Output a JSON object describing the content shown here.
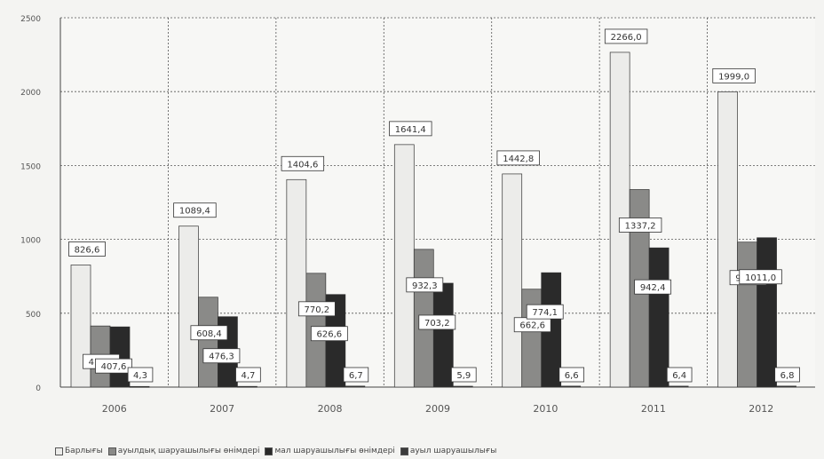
{
  "chart_data": {
    "type": "bar",
    "title": "",
    "xlabel": "",
    "ylabel": "",
    "ylim": [
      0,
      2500
    ],
    "yticks": [
      0,
      500,
      1000,
      1500,
      2000,
      2500
    ],
    "categories": [
      "2006",
      "2007",
      "2008",
      "2009",
      "2010",
      "2011",
      "2012"
    ],
    "grid": true,
    "legend_position": "bottom",
    "series": [
      {
        "name": "Барлығы",
        "color": "#ececea",
        "values": [
          826.6,
          1089.4,
          1404.6,
          1641.4,
          1442.8,
          2266.0,
          1999.0
        ],
        "labels": [
          "826,6",
          "1089,4",
          "1404,6",
          "1641,4",
          "1442,8",
          "2266,0",
          "1999,0"
        ]
      },
      {
        "name": "ауылдық шаруашылығы өнімдері",
        "color": "#8a8a88",
        "values": [
          413.7,
          608.4,
          770.2,
          932.3,
          662.6,
          1337.2,
          981.2
        ],
        "labels": [
          "413,7",
          "608,4",
          "770,2",
          "932,3",
          "662,6",
          "1337,2",
          "981,2"
        ]
      },
      {
        "name": "мал шаруашылығы өнімдері",
        "color": "#2a2a2a",
        "values": [
          407.6,
          476.3,
          626.6,
          703.2,
          774.1,
          942.4,
          1011.0
        ],
        "labels": [
          "407,6",
          "476,3",
          "626,6",
          "703,2",
          "774,1",
          "942,4",
          "1011,0"
        ]
      },
      {
        "name": "ауыл шаруашылығы",
        "color": "#3c3c3c",
        "values": [
          4.3,
          4.7,
          6.7,
          5.9,
          6.6,
          6.4,
          6.8
        ],
        "labels": [
          "4,3",
          "4,7",
          "6,7",
          "5,9",
          "6,6",
          "6,4",
          "6,8"
        ]
      }
    ]
  }
}
